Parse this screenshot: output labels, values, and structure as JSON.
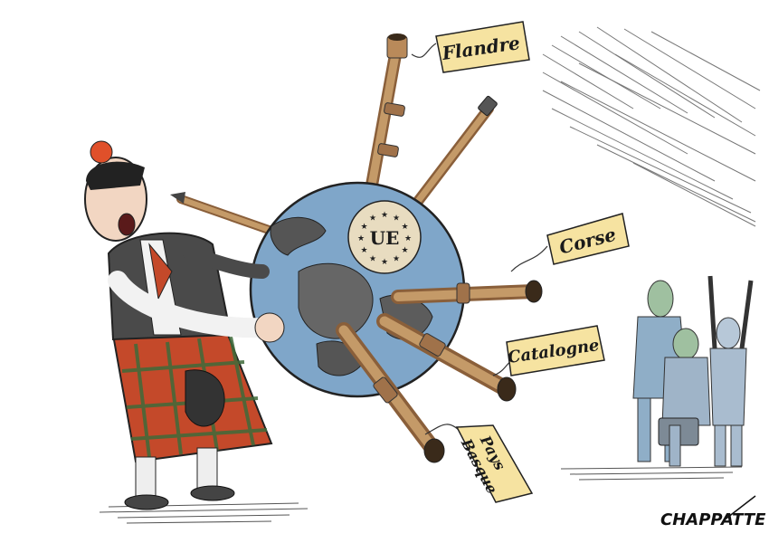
{
  "cartoon": {
    "emblem": "UE",
    "tags": {
      "flandre": "Flandre",
      "corse": "Corse",
      "catalogne": "Catalogne",
      "pays": "Pays",
      "basque": "Basque"
    },
    "signature": "CHAPPATTE"
  },
  "colors": {
    "tag_fill": "#f6e3a1",
    "ocean": "#7fa6c9",
    "land": "#555555",
    "kilt_red": "#c4492a",
    "kilt_green": "#3f6b3a",
    "pipe_wood": "#b98a5a",
    "bystanders": "#8faec7"
  }
}
